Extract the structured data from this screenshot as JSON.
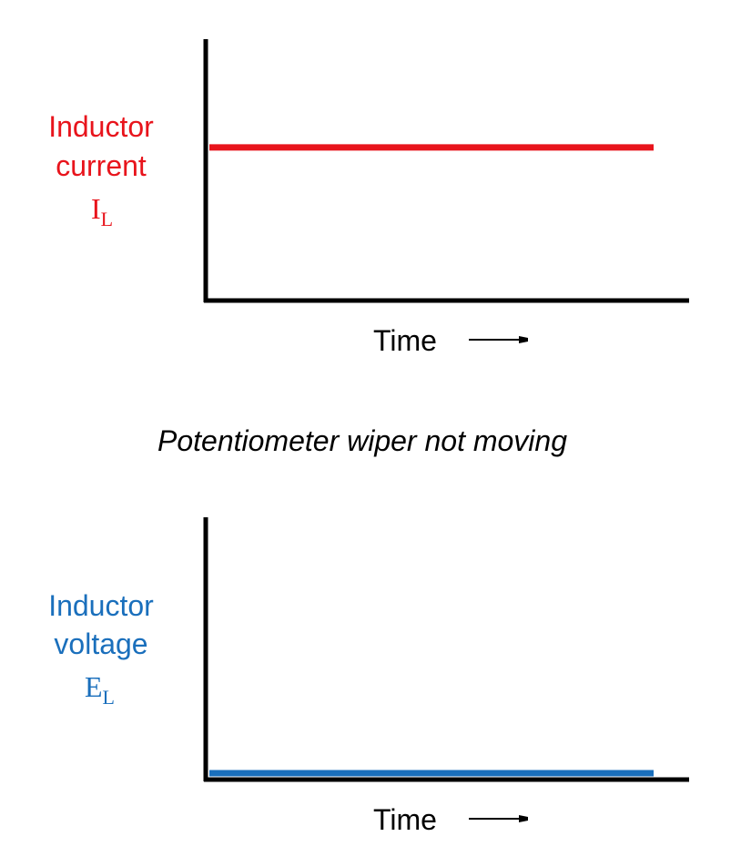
{
  "colors": {
    "current": "#e8141c",
    "voltage": "#1a6fbc",
    "axis": "#000000"
  },
  "caption": "Potentiometer wiper not moving",
  "chart_data": [
    {
      "type": "line",
      "ylabel_lines": [
        "Inductor",
        "current"
      ],
      "symbol": {
        "main": "I",
        "sub": "L"
      },
      "xlabel": "Time",
      "xlabel_arrow": "arrow-right-icon",
      "series": [
        {
          "x": [
            0,
            1
          ],
          "values": [
            0.58,
            0.58
          ],
          "color": "#e8141c"
        }
      ],
      "xlim": [
        0,
        1
      ],
      "ylim": [
        0,
        1
      ],
      "grid": false
    },
    {
      "type": "line",
      "ylabel_lines": [
        "Inductor",
        "voltage"
      ],
      "symbol": {
        "main": "E",
        "sub": "L"
      },
      "xlabel": "Time",
      "xlabel_arrow": "arrow-right-icon",
      "series": [
        {
          "x": [
            0,
            1
          ],
          "values": [
            0,
            0
          ],
          "color": "#1a6fbc"
        }
      ],
      "xlim": [
        0,
        1
      ],
      "ylim": [
        0,
        1
      ],
      "grid": false
    }
  ]
}
